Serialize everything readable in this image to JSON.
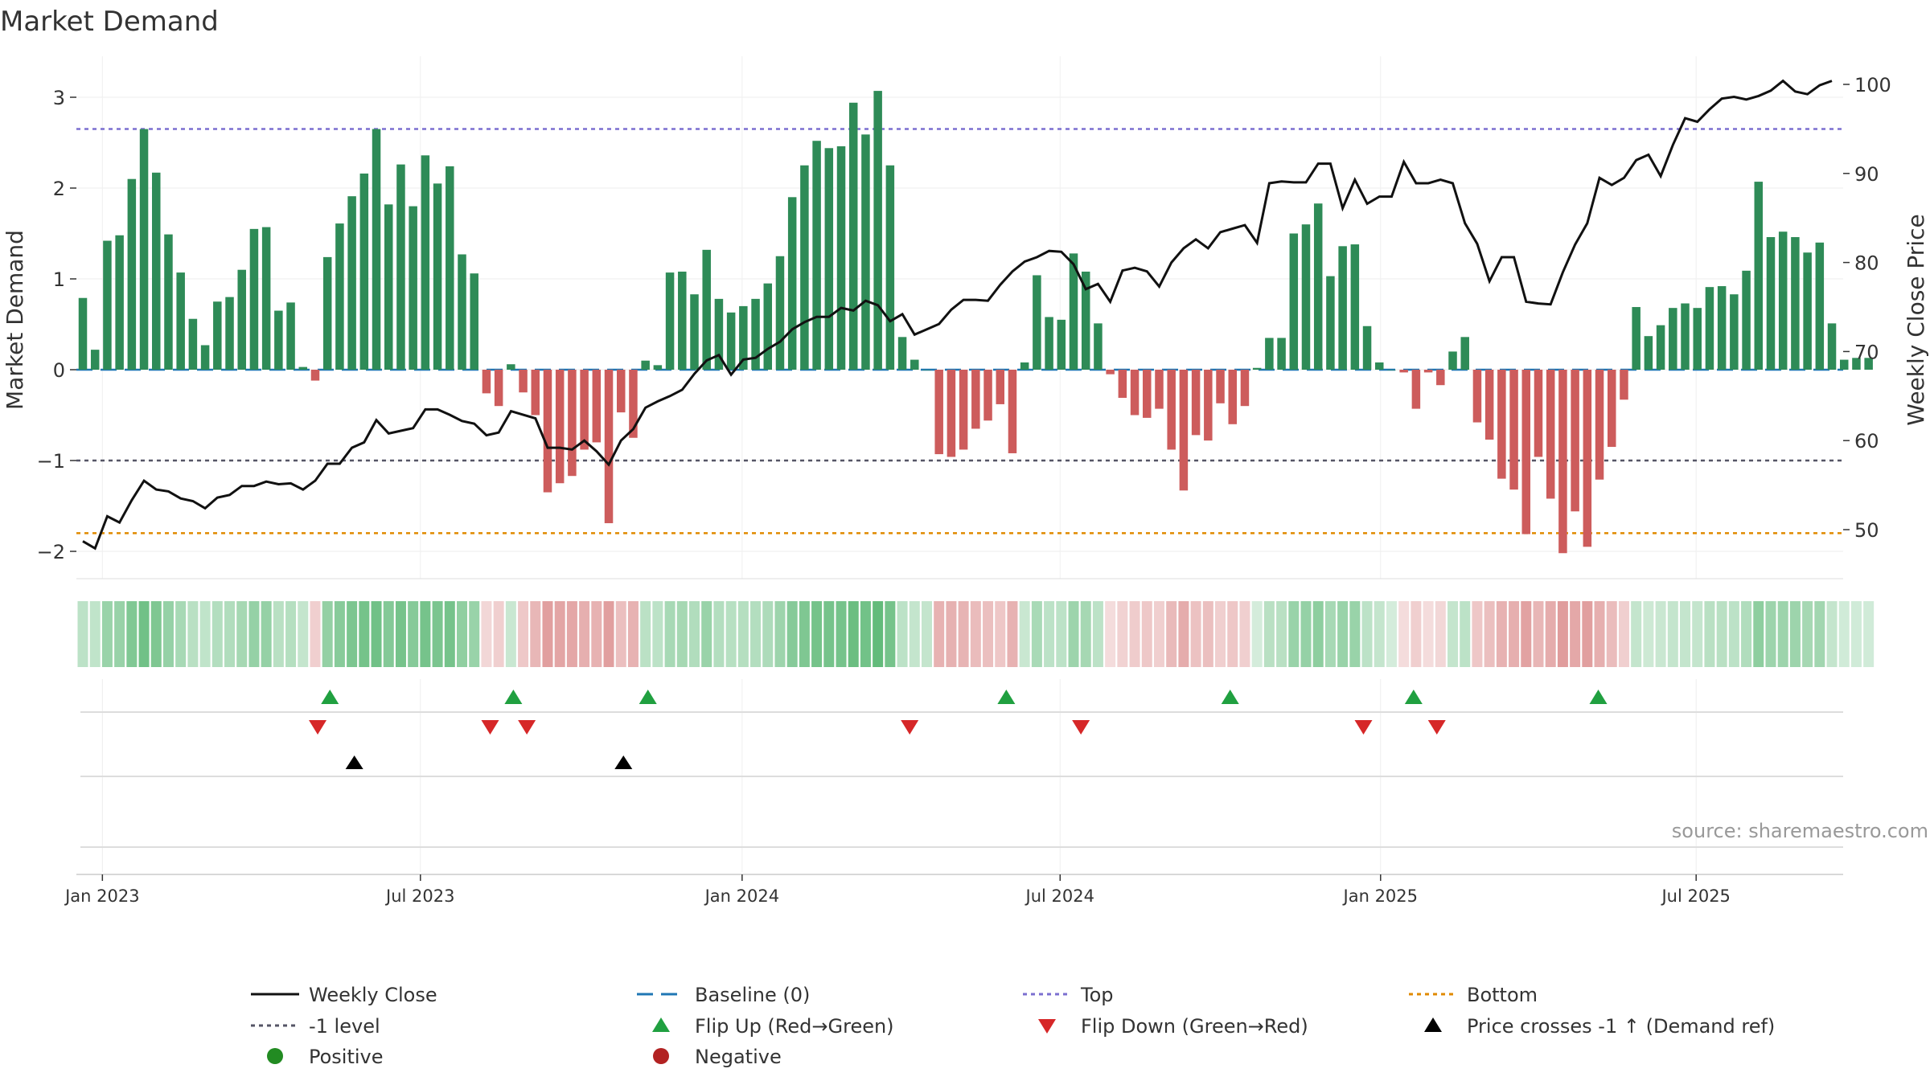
{
  "chart_data": {
    "type": "bar",
    "title": "Market Demand",
    "ylabel": "Market Demand",
    "y2label": "Weekly Close Price",
    "ylim": [
      -2.2,
      3.3
    ],
    "y2lim": [
      46.5,
      101.5
    ],
    "yticks": [
      "3",
      "2",
      "1",
      "0",
      "−1",
      "−2"
    ],
    "y2ticks": [
      "100",
      "90",
      "80",
      "70",
      "60",
      "50"
    ],
    "xticks": [
      "Jan 2023",
      "Jul 2023",
      "Jan 2024",
      "Jul 2024",
      "Jan 2025",
      "Jul 2025"
    ],
    "xtick_weeks": [
      1.6,
      27.6,
      53.9,
      79.9,
      106.1,
      131.9
    ],
    "reference_lines": {
      "top": 2.65,
      "minus_one": -1,
      "bottom": -1.8,
      "baseline": 0
    },
    "demand": [
      0.79,
      0.22,
      1.42,
      1.48,
      2.1,
      2.65,
      2.17,
      1.49,
      1.07,
      0.56,
      0.27,
      0.75,
      0.8,
      1.1,
      1.55,
      1.57,
      0.65,
      0.74,
      0.03,
      -0.12,
      1.24,
      1.61,
      1.91,
      2.16,
      2.65,
      1.82,
      2.26,
      1.8,
      2.36,
      2.05,
      2.24,
      1.27,
      1.06,
      -0.26,
      -0.4,
      0.06,
      -0.25,
      -0.5,
      -1.35,
      -1.25,
      -1.17,
      -0.88,
      -0.8,
      -1.69,
      -0.47,
      -0.75,
      0.1,
      0.05,
      1.07,
      1.08,
      0.83,
      1.32,
      0.78,
      0.63,
      0.7,
      0.78,
      0.95,
      1.25,
      1.9,
      2.25,
      2.52,
      2.44,
      2.46,
      2.94,
      2.59,
      3.07,
      2.25,
      0.36,
      0.11,
      0,
      -0.93,
      -0.96,
      -0.88,
      -0.65,
      -0.56,
      -0.38,
      -0.92,
      0.08,
      1.04,
      0.58,
      0.55,
      1.28,
      1.08,
      0.51,
      -0.05,
      -0.31,
      -0.5,
      -0.53,
      -0.43,
      -0.88,
      -1.33,
      -0.72,
      -0.78,
      -0.37,
      -0.6,
      -0.4,
      0.02,
      0.35,
      0.35,
      1.5,
      1.6,
      1.83,
      1.03,
      1.36,
      1.38,
      0.48,
      0.08,
      0,
      -0.03,
      -0.43,
      -0.03,
      -0.17,
      0.2,
      0.36,
      -0.58,
      -0.77,
      -1.2,
      -1.32,
      -1.81,
      -0.96,
      -1.42,
      -2.02,
      -1.56,
      -1.95,
      -1.21,
      -0.85,
      -0.33,
      0.69,
      0.37,
      0.49,
      0.68,
      0.73,
      0.68,
      0.91,
      0.92,
      0.83,
      1.09,
      2.07,
      1.46,
      1.52,
      1.46,
      1.29,
      1.4,
      0.51,
      0.11,
      0.13,
      0.13
    ],
    "price": [
      48.7,
      47.9,
      51.5,
      50.8,
      53.3,
      55.5,
      54.5,
      54.3,
      53.5,
      53.2,
      52.4,
      53.6,
      53.9,
      54.9,
      54.9,
      55.4,
      55.1,
      55.2,
      54.5,
      55.5,
      57.4,
      57.4,
      59.2,
      59.8,
      62.3,
      60.8,
      61.1,
      61.4,
      63.5,
      63.5,
      62.9,
      62.2,
      61.9,
      60.6,
      60.9,
      63.3,
      62.9,
      62.5,
      59.2,
      59.2,
      59.0,
      60.0,
      58.8,
      57.3,
      60.0,
      61.3,
      63.7,
      64.4,
      65.0,
      65.7,
      67.5,
      69.0,
      69.6,
      67.4,
      69.1,
      69.3,
      70.3,
      71.1,
      72.5,
      73.3,
      73.9,
      73.9,
      74.9,
      74.6,
      75.7,
      75.2,
      73.4,
      74.2,
      71.9,
      72.5,
      73.1,
      74.7,
      75.8,
      75.8,
      75.7,
      77.5,
      79.0,
      80.1,
      80.6,
      81.3,
      81.2,
      79.8,
      77.0,
      77.6,
      75.6,
      79.1,
      79.4,
      79.0,
      77.3,
      80.0,
      81.6,
      82.6,
      81.6,
      83.4,
      83.8,
      84.2,
      82.2,
      88.9,
      89.1,
      89.0,
      89.0,
      91.1,
      91.1,
      86.1,
      89.3,
      86.6,
      87.4,
      87.4,
      91.3,
      88.9,
      88.9,
      89.3,
      88.9,
      84.4,
      82.1,
      77.9,
      80.6,
      80.6,
      75.6,
      75.4,
      75.3,
      78.9,
      82.0,
      84.4,
      89.5,
      88.7,
      89.5,
      91.5,
      92.1,
      89.7,
      93.2,
      96.2,
      95.8,
      97.2,
      98.4,
      98.6,
      98.3,
      98.7,
      99.3,
      100.4,
      99.2,
      98.9,
      99.9,
      100.4
    ],
    "heat_strip": [
      0.34,
      0.32,
      0.52,
      0.53,
      0.65,
      0.73,
      0.66,
      0.54,
      0.45,
      0.36,
      0.32,
      0.39,
      0.4,
      0.46,
      0.54,
      0.54,
      0.36,
      0.38,
      0.3,
      0.3,
      0.55,
      0.61,
      0.67,
      0.71,
      0.73,
      0.63,
      0.7,
      0.62,
      0.7,
      0.68,
      0.7,
      0.57,
      0.52,
      0.25,
      0.3,
      0.28,
      0.34,
      0.45,
      0.6,
      0.56,
      0.55,
      0.5,
      0.48,
      0.6,
      0.4,
      0.48,
      0.35,
      0.34,
      0.45,
      0.46,
      0.4,
      0.52,
      0.39,
      0.37,
      0.38,
      0.39,
      0.42,
      0.5,
      0.62,
      0.66,
      0.71,
      0.7,
      0.7,
      0.76,
      0.72,
      0.8,
      0.7,
      0.34,
      0.3,
      0.3,
      0.48,
      0.49,
      0.47,
      0.42,
      0.4,
      0.35,
      0.48,
      0.28,
      0.44,
      0.34,
      0.34,
      0.5,
      0.46,
      0.34,
      0.22,
      0.28,
      0.32,
      0.34,
      0.3,
      0.43,
      0.52,
      0.38,
      0.4,
      0.3,
      0.35,
      0.3,
      0.22,
      0.36,
      0.36,
      0.52,
      0.54,
      0.58,
      0.45,
      0.52,
      0.52,
      0.34,
      0.3,
      0.22,
      0.22,
      0.3,
      0.22,
      0.25,
      0.3,
      0.34,
      0.35,
      0.4,
      0.48,
      0.5,
      0.58,
      0.46,
      0.52,
      0.62,
      0.54,
      0.6,
      0.5,
      0.42,
      0.3,
      0.3,
      0.26,
      0.28,
      0.3,
      0.3,
      0.3,
      0.36,
      0.36,
      0.34,
      0.4,
      0.58,
      0.5,
      0.5,
      0.5,
      0.46,
      0.48,
      0.3,
      0.24,
      0.24,
      0.24
    ],
    "flip_up_weeks": [
      20.2,
      35.2,
      46.2,
      75.5,
      93.8,
      108.8,
      123.9
    ],
    "flip_down_weeks": [
      19.2,
      33.3,
      36.3,
      67.6,
      81.6,
      104.7,
      110.7
    ],
    "price_cross_weeks": [
      22.2,
      44.2
    ],
    "legend": {
      "weekly_close": "Weekly Close",
      "baseline": "Baseline (0)",
      "top": "Top",
      "bottom": "Bottom",
      "minus_one": "-1 level",
      "flip_up": "Flip Up (Red→Green)",
      "flip_down": "Flip Down (Green→Red)",
      "price_cross": "Price crosses -1 ↑ (Demand ref)",
      "positive": "Positive",
      "negative": "Negative"
    },
    "colors": {
      "positive_bar": "#2e8b57",
      "negative_bar": "#cd5c5c",
      "price_line": "#111111",
      "baseline": "#1f77b4",
      "top": "#7b6fd0",
      "bottom": "#e08a00",
      "minus_one": "#555566",
      "flip_up": "#20a040",
      "flip_down": "#d62728",
      "price_cross": "#000000",
      "positive_dot": "#228b22",
      "negative_dot": "#b22222"
    },
    "source": "source: sharemaestro.com"
  }
}
